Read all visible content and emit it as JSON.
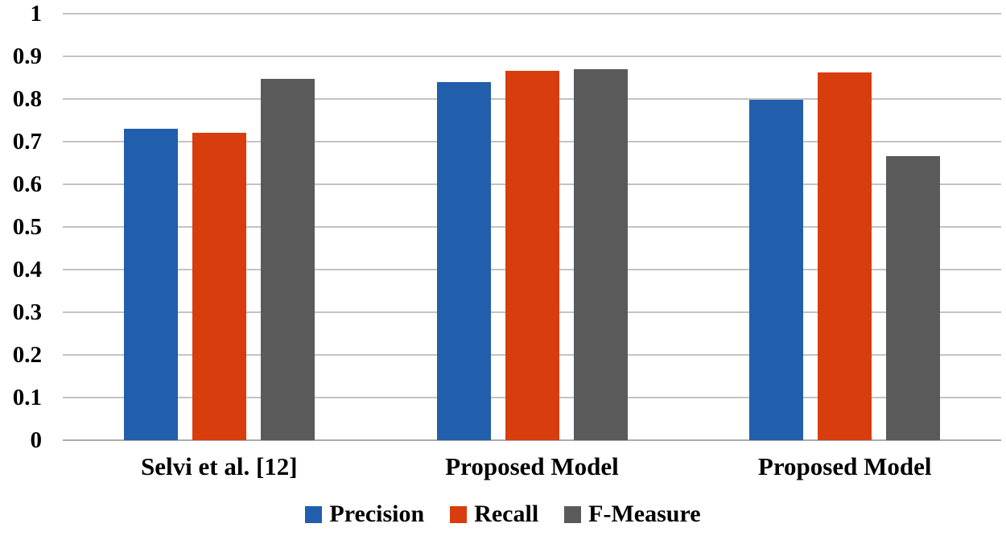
{
  "chart_data": {
    "type": "bar",
    "title": "",
    "categories": [
      "Selvi et al. [12]",
      "Proposed Model",
      "Proposed Model"
    ],
    "series": [
      {
        "name": "Precision",
        "color": "#215FAC",
        "values": [
          0.73,
          0.839,
          0.798
        ]
      },
      {
        "name": "Recall",
        "color": "#D83D0E",
        "values": [
          0.72,
          0.866,
          0.862
        ]
      },
      {
        "name": "F-Measure",
        "color": "#5A5A5A",
        "values": [
          0.848,
          0.87,
          0.667
        ]
      }
    ],
    "xlabel": "",
    "ylabel": "",
    "ylim": [
      0,
      1
    ],
    "y_ticks": [
      "1",
      "0.9",
      "0.8",
      "0.7",
      "0.6",
      "0.5",
      "0.4",
      "0.3",
      "0.2",
      "0.1",
      "0"
    ],
    "grid": true,
    "legend_position": "bottom"
  },
  "colors": {
    "background": "#FFFFFF",
    "gridline": "#C3C3C3",
    "axis_line": "#ABABAB",
    "text": "#000000"
  }
}
